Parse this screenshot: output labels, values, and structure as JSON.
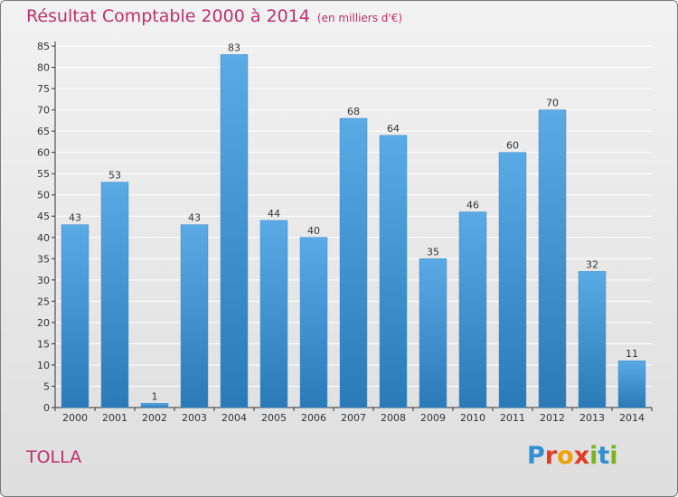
{
  "header": {
    "title": "Résultat Comptable 2000 à 2014",
    "subtitle": "(en milliers d'€)"
  },
  "footer": {
    "commune": "TOLLA",
    "logo_letters": [
      "P",
      "r",
      "o",
      "x",
      "i",
      "t",
      "i"
    ]
  },
  "colors": {
    "title": "#c0306a",
    "bar_top": "#5aaae6",
    "bar_bottom": "#2a7ab8",
    "grid": "#ffffff"
  },
  "chart_data": {
    "type": "bar",
    "title": "Résultat Comptable 2000 à 2014",
    "subtitle": "(en milliers d'€)",
    "xlabel": "",
    "ylabel": "",
    "categories": [
      "2000",
      "2001",
      "2002",
      "2003",
      "2004",
      "2005",
      "2006",
      "2007",
      "2008",
      "2009",
      "2010",
      "2011",
      "2012",
      "2013",
      "2014"
    ],
    "values": [
      43,
      53,
      1,
      43,
      83,
      44,
      40,
      68,
      64,
      35,
      46,
      60,
      70,
      32,
      11
    ],
    "ylim": [
      0,
      85
    ],
    "yticks": [
      0,
      5,
      10,
      15,
      20,
      25,
      30,
      35,
      40,
      45,
      50,
      55,
      60,
      65,
      70,
      75,
      80,
      85
    ],
    "grid": true,
    "legend": "none"
  }
}
